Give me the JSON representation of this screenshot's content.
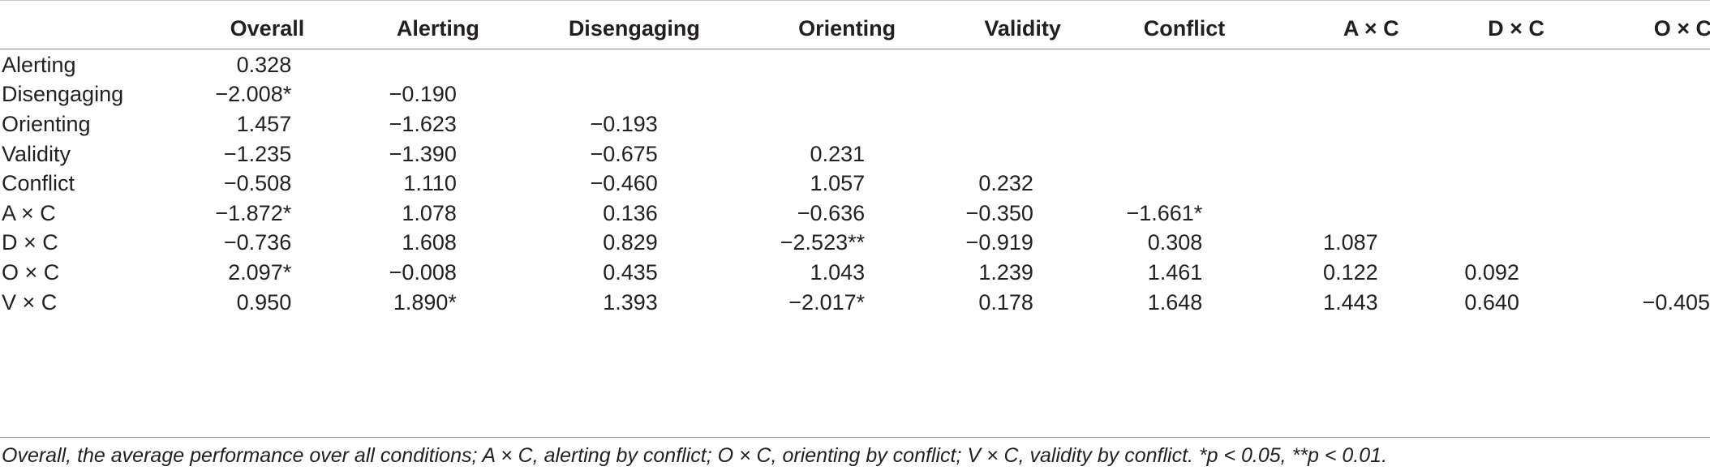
{
  "table": {
    "columns": [
      "",
      "Overall",
      "Alerting",
      "Disengaging",
      "Orienting",
      "Validity",
      "Conflict",
      "A × C",
      "D × C",
      "O × C"
    ],
    "rows": [
      {
        "label": "Alerting",
        "cells": [
          "0.328",
          "",
          "",
          "",
          "",
          "",
          "",
          "",
          ""
        ]
      },
      {
        "label": "Disengaging",
        "cells": [
          "−2.008*",
          "−0.190",
          "",
          "",
          "",
          "",
          "",
          "",
          ""
        ]
      },
      {
        "label": "Orienting",
        "cells": [
          "1.457",
          "−1.623",
          "−0.193",
          "",
          "",
          "",
          "",
          "",
          ""
        ]
      },
      {
        "label": "Validity",
        "cells": [
          "−1.235",
          "−1.390",
          "−0.675",
          "0.231",
          "",
          "",
          "",
          "",
          ""
        ]
      },
      {
        "label": "Conflict",
        "cells": [
          "−0.508",
          "1.110",
          "−0.460",
          "1.057",
          "0.232",
          "",
          "",
          "",
          ""
        ]
      },
      {
        "label": "A × C",
        "cells": [
          "−1.872*",
          "1.078",
          "0.136",
          "−0.636",
          "−0.350",
          "−1.661*",
          "",
          "",
          ""
        ]
      },
      {
        "label": "D × C",
        "cells": [
          "−0.736",
          "1.608",
          "0.829",
          "−2.523**",
          "−0.919",
          "0.308",
          "1.087",
          "",
          ""
        ]
      },
      {
        "label": "O × C",
        "cells": [
          "2.097*",
          "−0.008",
          "0.435",
          "1.043",
          "1.239",
          "1.461",
          "0.122",
          "0.092",
          ""
        ]
      },
      {
        "label": "V × C",
        "cells": [
          "0.950",
          "1.890*",
          "1.393",
          "−2.017*",
          "0.178",
          "1.648",
          "1.443",
          "0.640",
          "−0.405"
        ]
      }
    ]
  },
  "footnote": "Overall, the average performance over all conditions; A × C, alerting by conflict; O × C, orienting by conflict; V × C, validity by conflict. *p < 0.05, **p < 0.01."
}
